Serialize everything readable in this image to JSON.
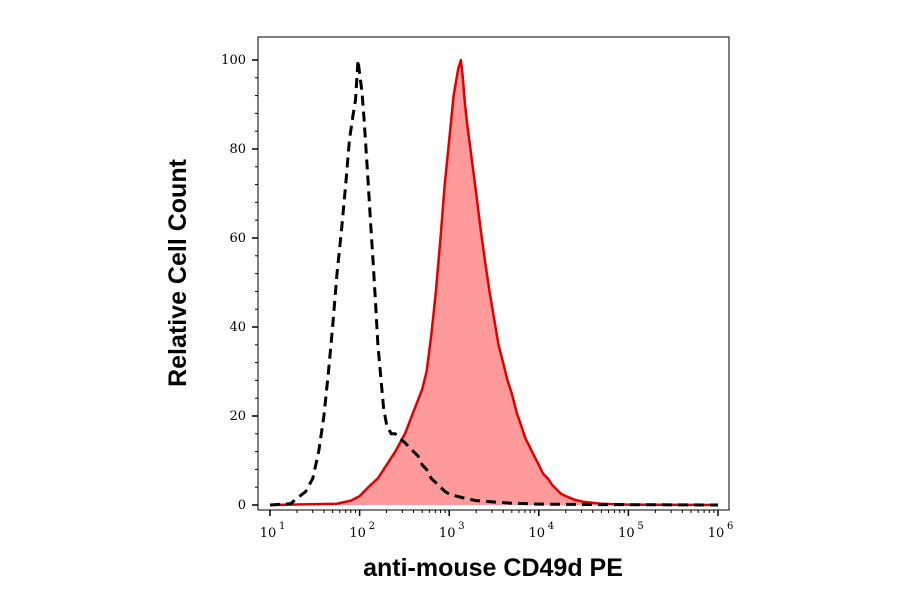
{
  "chart_data": {
    "type": "area",
    "title": "",
    "xlabel": "anti-mouse CD49d PE",
    "ylabel": "Relative Cell Count",
    "xscale": "log",
    "xlim": [
      10,
      1000000
    ],
    "ylim": [
      0,
      100
    ],
    "x_ticks": [
      {
        "base": "10",
        "exp": "1",
        "value": 10
      },
      {
        "base": "10",
        "exp": "2",
        "value": 100
      },
      {
        "base": "10",
        "exp": "3",
        "value": 1000
      },
      {
        "base": "10",
        "exp": "4",
        "value": 10000
      },
      {
        "base": "10",
        "exp": "5",
        "value": 100000
      },
      {
        "base": "10",
        "exp": "6",
        "value": 1000000
      }
    ],
    "y_ticks": [
      {
        "label": "0",
        "value": 0
      },
      {
        "label": "20",
        "value": 20
      },
      {
        "label": "40",
        "value": 40
      },
      {
        "label": "60",
        "value": 60
      },
      {
        "label": "80",
        "value": 80
      },
      {
        "label": "100",
        "value": 100
      }
    ],
    "grid": false,
    "series": [
      {
        "style": "dashed-line",
        "color": "#000000",
        "points": [
          [
            10,
            0
          ],
          [
            17,
            0.3
          ],
          [
            20,
            1.5
          ],
          [
            25,
            3
          ],
          [
            30,
            6
          ],
          [
            35,
            12
          ],
          [
            40,
            20
          ],
          [
            45,
            30
          ],
          [
            50,
            40
          ],
          [
            56,
            52
          ],
          [
            63,
            62
          ],
          [
            70,
            72
          ],
          [
            77,
            82
          ],
          [
            85,
            88
          ],
          [
            90,
            91
          ],
          [
            96,
            100
          ],
          [
            100,
            97
          ],
          [
            106,
            93
          ],
          [
            112,
            87
          ],
          [
            118,
            80
          ],
          [
            125,
            72
          ],
          [
            133,
            63
          ],
          [
            141,
            55
          ],
          [
            150,
            46
          ],
          [
            160,
            36
          ],
          [
            172,
            29
          ],
          [
            185,
            22
          ],
          [
            200,
            18
          ],
          [
            225,
            16
          ],
          [
            250,
            16
          ],
          [
            280,
            15
          ],
          [
            320,
            14
          ],
          [
            360,
            13
          ],
          [
            400,
            12
          ],
          [
            450,
            11
          ],
          [
            500,
            9
          ],
          [
            560,
            8
          ],
          [
            630,
            6
          ],
          [
            710,
            5
          ],
          [
            800,
            4
          ],
          [
            900,
            3
          ],
          [
            1000,
            2.5
          ],
          [
            1200,
            2
          ],
          [
            1500,
            1.5
          ],
          [
            2000,
            1
          ],
          [
            3000,
            0.7
          ],
          [
            5000,
            0.4
          ],
          [
            10000,
            0.2
          ],
          [
            50000,
            0.1
          ],
          [
            1000000,
            0
          ]
        ]
      },
      {
        "style": "filled-area",
        "color": "#e00000",
        "fill": "#ff9a9a",
        "points": [
          [
            10,
            0
          ],
          [
            56,
            0.3
          ],
          [
            80,
            1
          ],
          [
            100,
            2
          ],
          [
            125,
            4
          ],
          [
            160,
            6
          ],
          [
            200,
            9
          ],
          [
            250,
            12
          ],
          [
            320,
            16
          ],
          [
            400,
            21
          ],
          [
            500,
            26
          ],
          [
            560,
            30
          ],
          [
            630,
            38
          ],
          [
            710,
            48
          ],
          [
            800,
            60
          ],
          [
            890,
            72
          ],
          [
            1000,
            82
          ],
          [
            1120,
            92
          ],
          [
            1260,
            98
          ],
          [
            1350,
            100
          ],
          [
            1420,
            96
          ],
          [
            1500,
            90
          ],
          [
            1600,
            85
          ],
          [
            1780,
            78
          ],
          [
            2000,
            70
          ],
          [
            2240,
            62
          ],
          [
            2500,
            55
          ],
          [
            2820,
            48
          ],
          [
            3160,
            42
          ],
          [
            3550,
            36
          ],
          [
            4000,
            32
          ],
          [
            4470,
            28
          ],
          [
            5010,
            25
          ],
          [
            5620,
            21
          ],
          [
            6310,
            18
          ],
          [
            7080,
            15
          ],
          [
            7940,
            13
          ],
          [
            8910,
            11
          ],
          [
            10000,
            9
          ],
          [
            11200,
            7
          ],
          [
            12600,
            6
          ],
          [
            14100,
            4.5
          ],
          [
            15800,
            3.5
          ],
          [
            17800,
            2.5
          ],
          [
            20000,
            2
          ],
          [
            25000,
            1.2
          ],
          [
            31600,
            0.7
          ],
          [
            50000,
            0.3
          ],
          [
            100000,
            0.1
          ],
          [
            1000000,
            0
          ]
        ]
      }
    ]
  }
}
